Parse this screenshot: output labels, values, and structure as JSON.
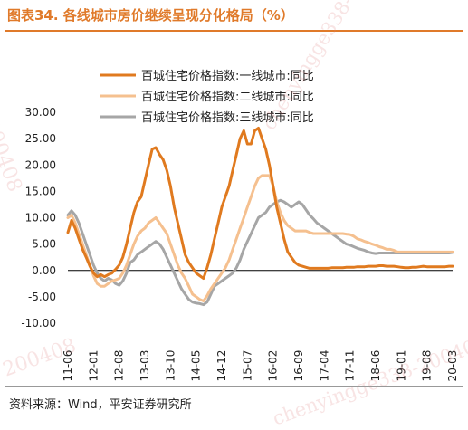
{
  "figure": {
    "title": "图表34.   各线城市房价继续呈现分化格局（%）",
    "source": "资料来源：Wind，平安证券研究所"
  },
  "watermarks": [
    "chenyingge338-200408",
    "200408",
    "chenyingge338-200408",
    "200408"
  ],
  "colors": {
    "title": "#e07a2a",
    "tier1": "#e07a1f",
    "tier2": "#f5c08f",
    "tier3": "#a6a6a6",
    "axis": "#000000"
  },
  "chart_data": {
    "type": "line",
    "x_start": "2011-06",
    "x_end": "2020-03",
    "x": [
      "11-06",
      "11-07",
      "11-08",
      "11-09",
      "11-10",
      "11-11",
      "11-12",
      "12-01",
      "12-02",
      "12-03",
      "12-04",
      "12-05",
      "12-06",
      "12-07",
      "12-08",
      "12-09",
      "12-10",
      "12-11",
      "12-12",
      "13-01",
      "13-02",
      "13-03",
      "13-04",
      "13-05",
      "13-06",
      "13-07",
      "13-08",
      "13-09",
      "13-10",
      "13-11",
      "13-12",
      "14-01",
      "14-02",
      "14-03",
      "14-04",
      "14-05",
      "14-06",
      "14-07",
      "14-08",
      "14-09",
      "14-10",
      "14-11",
      "14-12",
      "15-01",
      "15-02",
      "15-03",
      "15-04",
      "15-05",
      "15-06",
      "15-07",
      "15-08",
      "15-09",
      "15-10",
      "15-11",
      "15-12",
      "16-01",
      "16-02",
      "16-03",
      "16-04",
      "16-05",
      "16-06",
      "16-07",
      "16-08",
      "16-09",
      "16-10",
      "16-11",
      "16-12",
      "17-01",
      "17-02",
      "17-03",
      "17-04",
      "17-05",
      "17-06",
      "17-07",
      "17-08",
      "17-09",
      "17-10",
      "17-11",
      "17-12",
      "18-01",
      "18-02",
      "18-03",
      "18-04",
      "18-05",
      "18-06",
      "18-07",
      "18-08",
      "18-09",
      "18-10",
      "18-11",
      "18-12",
      "19-01",
      "19-02",
      "19-03",
      "19-04",
      "19-05",
      "19-06",
      "19-07",
      "19-08",
      "19-09",
      "19-10",
      "19-11",
      "19-12",
      "20-01",
      "20-02",
      "20-03"
    ],
    "x_tick_labels": [
      "11-06",
      "12-01",
      "12-08",
      "13-03",
      "13-10",
      "14-05",
      "14-12",
      "15-07",
      "16-02",
      "16-09",
      "17-04",
      "17-11",
      "18-06",
      "19-01",
      "19-08",
      "20-03"
    ],
    "ylim": [
      -10,
      30
    ],
    "y_ticks": [
      "-10.00",
      "-5.00",
      "0.00",
      "5.00",
      "10.00",
      "15.00",
      "20.00",
      "25.00",
      "30.00"
    ],
    "legend_position": "top",
    "series": [
      {
        "name": "百城住宅价格指数:一线城市:同比",
        "values": [
          7.2,
          9.5,
          8.0,
          6.0,
          4.0,
          2.5,
          0.8,
          -0.5,
          -1.2,
          -0.8,
          -1.2,
          -0.8,
          -0.5,
          0.2,
          1.0,
          2.5,
          5.0,
          8.0,
          11.0,
          13.0,
          14.0,
          17.0,
          20.0,
          23.0,
          23.3,
          22.0,
          21.0,
          19.0,
          16.0,
          12.0,
          9.0,
          6.0,
          3.0,
          1.5,
          0.5,
          -0.5,
          -1.0,
          -1.5,
          0.5,
          3.0,
          6.0,
          9.0,
          12.0,
          14.0,
          16.0,
          19.0,
          22.0,
          25.0,
          26.5,
          24.0,
          24.0,
          26.5,
          27.0,
          25.0,
          23.0,
          20.0,
          16.0,
          12.0,
          9.0,
          6.0,
          3.5,
          2.5,
          1.5,
          1.0,
          0.8,
          0.6,
          0.4,
          0.4,
          0.4,
          0.4,
          0.4,
          0.4,
          0.5,
          0.5,
          0.5,
          0.5,
          0.6,
          0.6,
          0.6,
          0.7,
          0.7,
          0.7,
          0.8,
          0.8,
          0.8,
          0.9,
          0.9,
          0.8,
          0.8,
          0.8,
          0.7,
          0.6,
          0.5,
          0.5,
          0.6,
          0.6,
          0.7,
          0.8,
          0.7,
          0.7,
          0.7,
          0.7,
          0.7,
          0.7,
          0.8,
          0.8
        ],
        "color": "#e07a1f"
      },
      {
        "name": "百城住宅价格指数:二线城市:同比",
        "values": [
          10.0,
          10.5,
          9.0,
          7.0,
          5.0,
          3.0,
          1.0,
          -1.0,
          -2.5,
          -3.0,
          -3.0,
          -2.5,
          -2.0,
          -1.8,
          -1.5,
          -0.5,
          1.0,
          3.0,
          5.0,
          6.5,
          7.5,
          8.0,
          9.0,
          9.5,
          10.0,
          9.0,
          8.0,
          7.0,
          5.0,
          3.0,
          1.0,
          -0.5,
          -1.5,
          -3.0,
          -4.5,
          -5.0,
          -5.5,
          -5.8,
          -4.8,
          -3.5,
          -2.5,
          -1.5,
          -0.5,
          0.5,
          2.0,
          4.0,
          6.0,
          8.0,
          10.0,
          12.0,
          14.0,
          16.0,
          17.5,
          18.0,
          18.0,
          18.0,
          16.0,
          13.0,
          11.0,
          9.5,
          8.5,
          8.0,
          7.5,
          7.5,
          7.5,
          7.5,
          7.2,
          7.0,
          7.0,
          7.0,
          7.0,
          7.0,
          7.0,
          7.0,
          7.0,
          7.0,
          6.9,
          6.8,
          6.5,
          6.0,
          5.8,
          5.5,
          5.3,
          5.0,
          4.8,
          4.5,
          4.3,
          4.0,
          4.0,
          3.8,
          3.5,
          3.5,
          3.5,
          3.5,
          3.5,
          3.5,
          3.5,
          3.5,
          3.5,
          3.5,
          3.5,
          3.5,
          3.5,
          3.5,
          3.5,
          3.5
        ],
        "color": "#f5c08f"
      },
      {
        "name": "百城住宅价格指数:三线城市:同比",
        "values": [
          10.5,
          11.3,
          10.5,
          9.0,
          7.0,
          5.0,
          3.0,
          1.0,
          -0.5,
          -1.5,
          -2.0,
          -1.5,
          -1.8,
          -2.5,
          -2.8,
          -2.0,
          -0.5,
          1.5,
          2.0,
          3.0,
          3.5,
          4.0,
          4.5,
          5.0,
          5.5,
          5.0,
          4.0,
          2.5,
          1.0,
          -0.5,
          -2.0,
          -3.5,
          -4.5,
          -5.5,
          -6.0,
          -6.2,
          -6.3,
          -6.5,
          -6.0,
          -4.5,
          -3.0,
          -2.5,
          -2.0,
          -1.5,
          -1.0,
          -0.5,
          0.5,
          2.0,
          4.0,
          5.5,
          7.0,
          8.5,
          10.0,
          10.5,
          11.0,
          12.0,
          12.5,
          13.0,
          13.3,
          13.0,
          12.5,
          12.0,
          12.5,
          13.0,
          12.5,
          11.5,
          10.5,
          9.8,
          9.0,
          8.5,
          8.0,
          7.5,
          7.0,
          6.5,
          6.0,
          5.5,
          5.0,
          4.8,
          4.5,
          4.2,
          4.0,
          3.8,
          3.5,
          3.3,
          3.2,
          3.3,
          3.3,
          3.3,
          3.3,
          3.3,
          3.3,
          3.3,
          3.3,
          3.3,
          3.3,
          3.3,
          3.3,
          3.3,
          3.3,
          3.3,
          3.3,
          3.3,
          3.3,
          3.3,
          3.3,
          3.4
        ],
        "color": "#a6a6a6"
      }
    ]
  }
}
